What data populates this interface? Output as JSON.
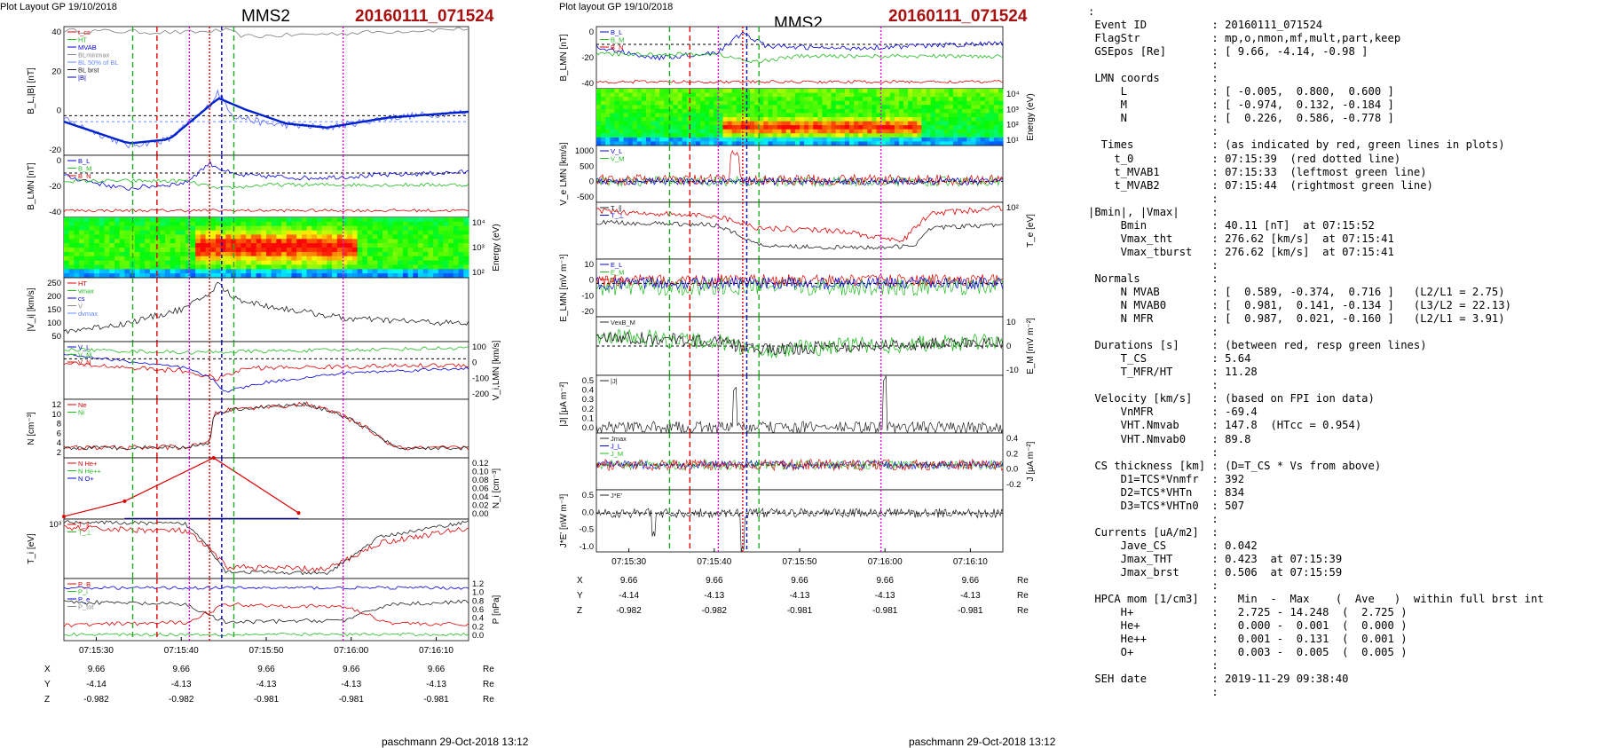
{
  "colors": {
    "event_red": "#a81010",
    "t0_line": "#e00000",
    "mva_line": "#22aa22",
    "mfr_line": "#0000cc",
    "tburst_line": "#dd00dd"
  },
  "plots": [
    {
      "header": {
        "layout": "Plot Layout GP 19/10/2018",
        "sc": "MMS2",
        "event": "20160111_071524"
      },
      "footer": "paschmann 29-Oct-2018 13:12",
      "time_ticks": [
        "07:15:30",
        "07:15:40",
        "07:15:50",
        "07:16:00",
        "07:16:10"
      ],
      "ephem": [
        {
          "name": "X",
          "values": [
            "9.66",
            "9.66",
            "9.66",
            "9.66",
            "9.66"
          ],
          "unit": "Re"
        },
        {
          "name": "Y",
          "values": [
            "-4.14",
            "-4.13",
            "-4.13",
            "-4.13",
            "-4.13"
          ],
          "unit": "Re"
        },
        {
          "name": "Z",
          "values": [
            "-0.982",
            "-0.982",
            "-0.981",
            "-0.981",
            "-0.981"
          ],
          "unit": "Re"
        }
      ],
      "panels": [
        {
          "id": "BL",
          "ylabel": "B_L,|B| [nT]",
          "ylim": [
            -20,
            45
          ],
          "ticks": [
            "40",
            "20",
            "0",
            "-20"
          ],
          "legend": [
            "t_cs",
            "HT",
            "MVAB",
            "BLminmax",
            "BL 50% of BL",
            "BL brst",
            "|B|"
          ]
        },
        {
          "id": "BLMN",
          "ylabel": "B_LMN [nT]",
          "ylim": [
            -45,
            18
          ],
          "ticks": [
            "0",
            "-20",
            "-40"
          ],
          "series": [
            "B_L",
            "B_M",
            "B_N"
          ]
        },
        {
          "id": "spec",
          "ylabel": "Energy (eV)",
          "ticks": [
            "10⁴",
            "10³",
            "10²"
          ],
          "type": "spectrogram"
        },
        {
          "id": "Vi",
          "ylabel": "|V_i| [km/s]",
          "ylim": [
            40,
            290
          ],
          "ticks": [
            "250",
            "200",
            "150",
            "100",
            "50"
          ],
          "legend": [
            "HT",
            "vmax",
            "cs",
            "V",
            "dvmax"
          ]
        },
        {
          "id": "ViLMN",
          "ylabel": "V_i,LMN [km/s]",
          "ylim": [
            -260,
            110
          ],
          "ticks": [
            "100",
            "0",
            "-100",
            "-200"
          ],
          "series": [
            "V_L",
            "V_M",
            "V_N"
          ]
        },
        {
          "id": "N",
          "ylabel": "N [cm⁻³]",
          "ylim": [
            0,
            12
          ],
          "ticks": [
            "12",
            "10",
            "8",
            "6",
            "4",
            "2"
          ],
          "legend": [
            "Ne",
            "Ni"
          ]
        },
        {
          "id": "Ni",
          "ylabel": "N_i [cm⁻³]",
          "ylim": [
            0,
            0.12
          ],
          "ticks": [
            "0.12",
            "0.10",
            "0.08",
            "0.06",
            "0.04",
            "0.02",
            "0.00"
          ],
          "legend": [
            "N He+",
            "N He++",
            "N O+"
          ]
        },
        {
          "id": "Ti",
          "ylabel": "T_i [eV]",
          "ticks": [
            "10³"
          ],
          "legend": [
            "T_∥",
            "T_⊥"
          ]
        },
        {
          "id": "P",
          "ylabel": "P [nPa]",
          "ylim": [
            0,
            1.2
          ],
          "ticks": [
            "1.2",
            "1.0",
            "0.8",
            "0.6",
            "0.4",
            "0.2",
            "0.0"
          ],
          "legend": [
            "P_B",
            "P_i",
            "P_e",
            "P_tot"
          ]
        }
      ]
    },
    {
      "header": {
        "layout": "Plot layout GP 19/10/2018",
        "sc": "MMS2",
        "event": "20160111_071524"
      },
      "footer": "paschmann 29-Oct-2018 13:12",
      "time_ticks": [
        "07:15:30",
        "07:15:40",
        "07:15:50",
        "07:16:00",
        "07:16:10"
      ],
      "ephem": [
        {
          "name": "X",
          "values": [
            "9.66",
            "9.66",
            "9.66",
            "9.66",
            "9.66"
          ],
          "unit": "Re"
        },
        {
          "name": "Y",
          "values": [
            "-4.14",
            "-4.13",
            "-4.13",
            "-4.13",
            "-4.13"
          ],
          "unit": "Re"
        },
        {
          "name": "Z",
          "values": [
            "-0.982",
            "-0.982",
            "-0.981",
            "-0.981",
            "-0.981"
          ],
          "unit": "Re"
        }
      ],
      "panels": [
        {
          "id": "BLMN",
          "ylabel": "B_LMN [nT]",
          "ylim": [
            -45,
            18
          ],
          "ticks": [
            "0",
            "-20",
            "-40"
          ],
          "series": [
            "B_L",
            "B_M",
            "B_N"
          ]
        },
        {
          "id": "spec",
          "ylabel": "Energy (eV)",
          "ticks": [
            "10⁴",
            "10³",
            "10²",
            "10¹"
          ],
          "type": "spectrogram"
        },
        {
          "id": "Ve",
          "ylabel": "V_e LMN [km/s]",
          "ylim": [
            -700,
            1200
          ],
          "ticks": [
            "1000",
            "500",
            "0",
            "-500"
          ],
          "series": [
            "V_L",
            "V_M"
          ]
        },
        {
          "id": "Te",
          "ylabel": "T_e [eV]",
          "ticks": [
            "10²"
          ],
          "legend": [
            "T_∥",
            "T_⊥"
          ]
        },
        {
          "id": "E",
          "ylabel": "E_LMN [mV m⁻¹]",
          "ylim": [
            -22,
            16
          ],
          "ticks": [
            "10",
            "0",
            "-10",
            "-20"
          ],
          "series": [
            "E_L",
            "E_M",
            "E_N"
          ]
        },
        {
          "id": "EM",
          "ylabel": "E_M [mV m⁻²]",
          "ylim": [
            -14,
            14
          ],
          "ticks": [
            "10",
            "0",
            "-10"
          ],
          "legend": [
            "VexB_M"
          ]
        },
        {
          "id": "J",
          "ylabel": "|J| [μA m⁻²]",
          "ylim": [
            0,
            0.5
          ],
          "ticks": [
            "0.5",
            "0.4",
            "0.3",
            "0.2",
            "0.1",
            "0.0"
          ],
          "legend": [
            "|J|"
          ]
        },
        {
          "id": "JLMN",
          "ylabel": "J [μA m⁻²]",
          "ylim": [
            -0.35,
            0.45
          ],
          "ticks": [
            "0.4",
            "0.2",
            "0.0",
            "-0.2"
          ],
          "legend": [
            "Jmax",
            "J_L",
            "J_M"
          ]
        },
        {
          "id": "JE",
          "ylabel": "J*E' [nW m⁻³]",
          "ylim": [
            -1.0,
            0.6
          ],
          "ticks": [
            "0.5",
            "0.0",
            "-0.5",
            "-1.0"
          ],
          "legend": [
            "J*E'"
          ]
        }
      ]
    }
  ],
  "info_lines": [
    ":",
    " Event ID          : 20160111_071524",
    " FlagStr           : mp,o,nmon,mf,mult,part,keep",
    " GSEpos [Re]       : [ 9.66, -4.14, -0.98 ]",
    "                   :",
    " LMN coords        :",
    "     L             : [ -0.005,  0.800,  0.600 ]",
    "     M             : [ -0.974,  0.132, -0.184 ]",
    "     N             : [  0.226,  0.586, -0.778 ]",
    "                   :",
    "  Times            : (as indicated by red, green lines in plots)",
    "    t_0            : 07:15:39  (red dotted line)",
    "    t_MVAB1        : 07:15:33  (leftmost green line)",
    "    t_MVAB2        : 07:15:44  (rightmost green line)",
    "                   :",
    "|Bmin|, |Vmax|     :",
    "     Bmin          : 40.11 [nT]  at 07:15:52",
    "     Vmax_tht      : 276.62 [km/s]  at 07:15:41",
    "     Vmax_tburst   : 276.62 [km/s]  at 07:15:41",
    "                   :",
    " Normals           :",
    "     N MVAB        : [  0.589, -0.374,  0.716 ]   (L2/L1 = 2.75)",
    "     N MVAB0       : [  0.981,  0.141, -0.134 ]   (L3/L2 = 22.13)",
    "     N MFR         : [  0.987,  0.021, -0.160 ]   (L2/L1 = 3.91)",
    "                   :",
    " Durations [s]     : (between red, resp green lines)",
    "     T_CS          : 5.64",
    "     T_MFR/HT      : 11.28",
    "                   :",
    " Velocity [km/s]   : (based on FPI ion data)",
    "     VnMFR         : -69.4",
    "     VHT.Nmvab     : 147.8  (HTcc = 0.954)",
    "     VHT.Nmvab0    : 89.8",
    "                   :",
    " CS thickness [km] : (D=T_CS * Vs from above)",
    "     D1=TCS*Vnmfr  : 392",
    "     D2=TCS*VHTn   : 834",
    "     D3=TCS*VHTn0  : 507",
    "                   :",
    " Currents [uA/m2]  :",
    "     Jave_CS       : 0.042",
    "     Jmax_THT      : 0.423  at 07:15:39",
    "     Jmax_brst     : 0.506  at 07:15:59",
    "                   :",
    " HPCA mom [1/cm3]  :   Min  -  Max    (  Ave   )  within full brst int",
    "     H+            :   2.725 - 14.248  (  2.725 )",
    "     He+           :   0.000 -  0.001  (  0.000 )",
    "     He++          :   0.001 -  0.131  (  0.001 )",
    "     O+            :   0.003 -  0.005  (  0.005 )",
    "                   :",
    " SEH date          : 2019-11-29 09:38:40",
    "                   :"
  ],
  "chart_data": [
    {
      "type": "line",
      "title": "MMS2 20160111_071524",
      "x": [
        "07:15:26",
        "07:15:30",
        "07:15:33",
        "07:15:36",
        "07:15:39",
        "07:15:41",
        "07:15:44",
        "07:15:48",
        "07:15:52",
        "07:15:56",
        "07:16:00",
        "07:16:05",
        "07:16:12"
      ],
      "series": [
        {
          "name": "BL brst",
          "values": [
            -5,
            -14,
            -15,
            -13,
            3,
            9,
            6,
            -3,
            -7,
            -5,
            -1,
            1,
            2
          ]
        },
        {
          "name": "|B|",
          "values": [
            43,
            42,
            41,
            42,
            43,
            41,
            42,
            40,
            41,
            42,
            43,
            44,
            44
          ]
        },
        {
          "name": "|V_i|",
          "values": [
            90,
            130,
            150,
            200,
            260,
            276,
            210,
            170,
            150,
            130,
            120,
            115,
            115
          ]
        },
        {
          "name": "Ni",
          "values": [
            2,
            2,
            2,
            2,
            2,
            10,
            10,
            11,
            11,
            11,
            7,
            2,
            2
          ]
        },
        {
          "name": "|J|",
          "values": [
            0.05,
            0.08,
            0.18,
            0.1,
            0.42,
            0.15,
            0.1,
            0.12,
            0.14,
            0.2,
            0.5,
            0.12,
            0.08
          ]
        }
      ],
      "ylabel": "B_L,|B| [nT]",
      "ylim": [
        -20,
        45
      ]
    }
  ]
}
